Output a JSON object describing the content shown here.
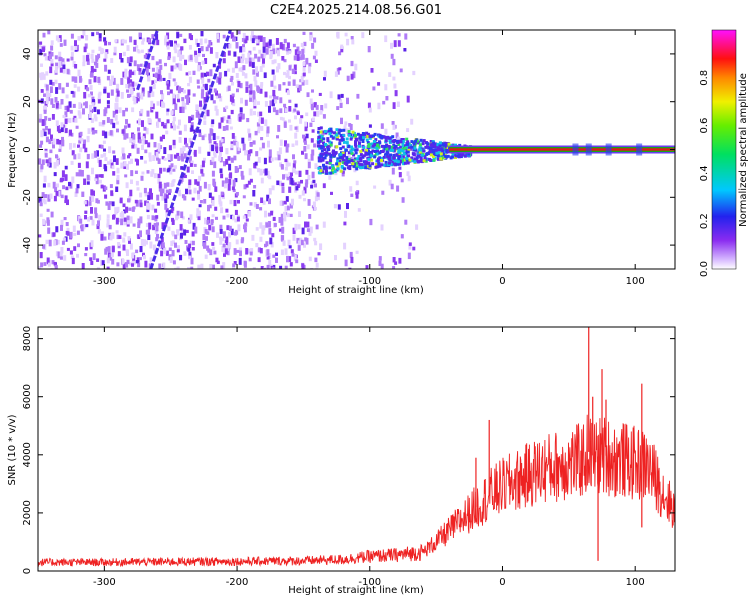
{
  "title": "C2E4.2025.214.08.56.G01",
  "colors": {
    "snr_line": "#ee2222",
    "spectral_line": "#e01818",
    "spectral_ridge_outer": "#1aa51a",
    "noise_purple": "#7a28ee",
    "background": "#ffffff"
  },
  "chart_data": [
    {
      "type": "heatmap",
      "title": "",
      "xlabel": "Height of straight line (km)",
      "ylabel": "Frequency (Hz)",
      "xlim": [
        -350,
        130
      ],
      "ylim": [
        -50,
        50
      ],
      "xticks": [
        -300,
        -200,
        -100,
        0,
        100
      ],
      "yticks": [
        -40,
        -20,
        0,
        20,
        40
      ],
      "colorscale": "rainbow (white to purple to blue to cyan to green to yellow to red to magenta)",
      "colorbar": {
        "label": "Normalized spectral amplitude",
        "range": [
          0,
          1
        ],
        "ticks": [
          "0.0",
          "0.2",
          "0.4",
          "0.6",
          "0.8"
        ]
      },
      "features": {
        "steady_line_frequency_hz": 0,
        "steady_line_from_x_km": -40,
        "noise_region_x_km": [
          -350,
          -75
        ],
        "transition_region_x_km": [
          -140,
          -25
        ],
        "diagonal_tracks": [
          {
            "x_start_km": -265,
            "f_start_hz": -50,
            "x_end_km": -205,
            "f_end_hz": 50
          },
          {
            "x_start_km": -275,
            "f_start_hz": 25,
            "x_end_km": -260,
            "f_end_hz": 50
          }
        ]
      }
    },
    {
      "type": "line",
      "title": "",
      "xlabel": "Height of straight line (km)",
      "ylabel": "SNR (10 * v/v)",
      "xlim": [
        -350,
        130
      ],
      "ylim": [
        0,
        8400
      ],
      "xticks": [
        -300,
        -200,
        -100,
        0,
        100
      ],
      "yticks": [
        0,
        2000,
        4000,
        6000,
        8000
      ],
      "series": [
        {
          "x": [
            -350,
            -300,
            -250,
            -200,
            -150,
            -120,
            -100,
            -80,
            -60,
            -50,
            -40,
            -30,
            -20,
            -10,
            0,
            10,
            20,
            30,
            40,
            50,
            60,
            65,
            70,
            75,
            80,
            85,
            90,
            95,
            100,
            105,
            110,
            115,
            120,
            125,
            130
          ],
          "values": [
            300,
            300,
            320,
            330,
            350,
            400,
            500,
            550,
            650,
            1000,
            1400,
            1800,
            2200,
            2600,
            2900,
            3100,
            3300,
            3500,
            3600,
            3700,
            3800,
            4100,
            3900,
            4000,
            3950,
            3800,
            3850,
            3750,
            3700,
            3650,
            3600,
            3200,
            2800,
            2400,
            2100
          ],
          "spikes": [
            {
              "x": -10,
              "value": 5200
            },
            {
              "x": -20,
              "value": 3900
            },
            {
              "x": 65,
              "value": 8400
            },
            {
              "x": 68,
              "value": 6000
            },
            {
              "x": 75,
              "value": 6950
            },
            {
              "x": 78,
              "value": 5900
            },
            {
              "x": 105,
              "value": 6450
            },
            {
              "x": 72,
              "value": 350
            },
            {
              "x": 105,
              "value": 1500
            }
          ]
        }
      ]
    }
  ]
}
